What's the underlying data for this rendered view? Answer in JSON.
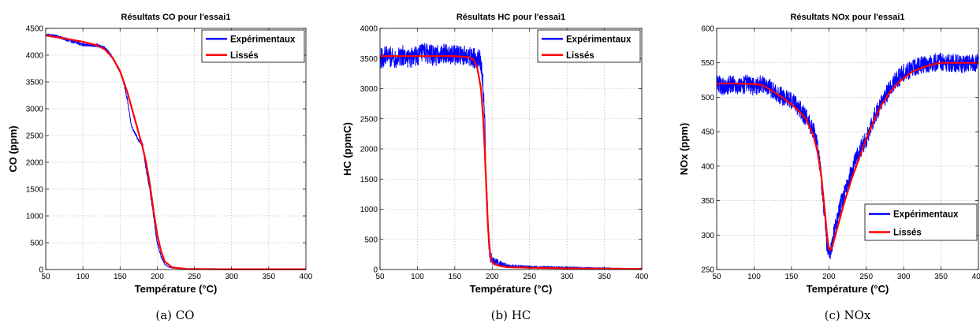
{
  "chart_data": [
    {
      "type": "line",
      "title": "Résultats CO pour l'essai1",
      "xlabel": "Température (°C)",
      "ylabel": "CO (ppm)",
      "caption": "(a) CO",
      "xlim": [
        50,
        400
      ],
      "ylim": [
        0,
        4500
      ],
      "xticks": [
        50,
        100,
        150,
        200,
        250,
        300,
        350,
        400
      ],
      "yticks": [
        0,
        500,
        1000,
        1500,
        2000,
        2500,
        3000,
        3500,
        4000,
        4500
      ],
      "grid": true,
      "legend_position": "top-right",
      "series": [
        {
          "name": "Expérimentaux",
          "color": "#0000ff",
          "x": [
            50,
            60,
            70,
            80,
            90,
            100,
            110,
            120,
            130,
            140,
            145,
            150,
            155,
            160,
            165,
            170,
            175,
            180,
            183,
            186,
            190,
            195,
            200,
            205,
            210,
            215,
            220,
            230,
            250,
            300,
            350,
            400
          ],
          "y": [
            4380,
            4360,
            4330,
            4280,
            4240,
            4200,
            4190,
            4180,
            4130,
            3950,
            3820,
            3700,
            3480,
            3150,
            2700,
            2550,
            2400,
            2350,
            2050,
            1800,
            1500,
            1000,
            500,
            250,
            100,
            50,
            30,
            15,
            10,
            5,
            5,
            5
          ],
          "noise": 30
        },
        {
          "name": "Lissés",
          "color": "#ff0000",
          "x": [
            50,
            80,
            100,
            120,
            130,
            140,
            150,
            160,
            170,
            180,
            185,
            190,
            195,
            200,
            205,
            210,
            220,
            240,
            300,
            400
          ],
          "y": [
            4370,
            4300,
            4250,
            4180,
            4100,
            3950,
            3700,
            3300,
            2800,
            2300,
            2000,
            1600,
            1100,
            650,
            350,
            150,
            40,
            10,
            5,
            5
          ]
        }
      ]
    },
    {
      "type": "line",
      "title": "Résultats HC pour l'essai1",
      "xlabel": "Température (°C)",
      "ylabel": "HC (ppmC)",
      "caption": "(b) HC",
      "xlim": [
        50,
        400
      ],
      "ylim": [
        0,
        4000
      ],
      "xticks": [
        50,
        100,
        150,
        200,
        250,
        300,
        350,
        400
      ],
      "yticks": [
        0,
        500,
        1000,
        1500,
        2000,
        2500,
        3000,
        3500,
        4000
      ],
      "grid": true,
      "legend_position": "top-right",
      "series": [
        {
          "name": "Expérimentaux",
          "color": "#0000ff",
          "x": [
            50,
            60,
            70,
            80,
            90,
            100,
            110,
            120,
            130,
            140,
            150,
            160,
            170,
            175,
            180,
            185,
            188,
            190,
            192,
            194,
            196,
            198,
            200,
            205,
            210,
            220,
            250,
            300,
            350,
            400
          ],
          "y": [
            3500,
            3550,
            3500,
            3550,
            3500,
            3550,
            3600,
            3550,
            3550,
            3600,
            3550,
            3550,
            3550,
            3500,
            3500,
            3450,
            3000,
            2500,
            1500,
            800,
            400,
            200,
            150,
            120,
            100,
            60,
            40,
            30,
            20,
            10
          ],
          "noise": 170
        },
        {
          "name": "Lissés",
          "color": "#ff0000",
          "x": [
            50,
            100,
            150,
            170,
            175,
            180,
            185,
            188,
            190,
            192,
            194,
            196,
            198,
            200,
            205,
            210,
            220,
            250,
            300,
            400
          ],
          "y": [
            3540,
            3540,
            3540,
            3520,
            3480,
            3350,
            3000,
            2500,
            2000,
            1400,
            800,
            400,
            200,
            120,
            80,
            60,
            40,
            30,
            20,
            10
          ]
        }
      ]
    },
    {
      "type": "line",
      "title": "Résultats NOx pour l'essai1",
      "xlabel": "Température (°C)",
      "ylabel": "NOx (ppm)",
      "caption": "(c) NOx",
      "xlim": [
        50,
        400
      ],
      "ylim": [
        250,
        600
      ],
      "xticks": [
        50,
        100,
        150,
        200,
        250,
        300,
        350,
        400
      ],
      "yticks": [
        250,
        300,
        350,
        400,
        450,
        500,
        550,
        600
      ],
      "grid": true,
      "legend_position": "bottom-right",
      "series": [
        {
          "name": "Expérimentaux",
          "color": "#0000ff",
          "x": [
            50,
            60,
            70,
            80,
            90,
            100,
            110,
            120,
            130,
            140,
            150,
            160,
            170,
            175,
            180,
            185,
            190,
            195,
            198,
            200,
            202,
            205,
            210,
            220,
            230,
            240,
            250,
            260,
            270,
            280,
            290,
            300,
            310,
            320,
            330,
            340,
            350,
            360,
            370,
            380,
            390,
            400
          ],
          "y": [
            520,
            515,
            520,
            515,
            520,
            515,
            520,
            515,
            505,
            500,
            495,
            485,
            470,
            460,
            450,
            430,
            380,
            320,
            280,
            270,
            275,
            290,
            320,
            360,
            390,
            420,
            440,
            470,
            490,
            510,
            525,
            535,
            540,
            545,
            548,
            550,
            552,
            550,
            550,
            548,
            550,
            550
          ],
          "noise": 13
        },
        {
          "name": "Lissés",
          "color": "#ff0000",
          "x": [
            50,
            80,
            100,
            110,
            120,
            130,
            140,
            150,
            160,
            170,
            175,
            180,
            185,
            190,
            195,
            198,
            200,
            202,
            205,
            210,
            220,
            230,
            240,
            250,
            260,
            270,
            280,
            290,
            300,
            310,
            320,
            330,
            340,
            350,
            360,
            380,
            400
          ],
          "y": [
            520,
            520,
            519,
            518,
            512,
            505,
            498,
            490,
            480,
            468,
            455,
            442,
            420,
            385,
            330,
            295,
            280,
            278,
            285,
            305,
            345,
            380,
            410,
            440,
            465,
            488,
            505,
            518,
            528,
            536,
            541,
            545,
            548,
            550,
            550,
            550,
            550
          ]
        }
      ]
    }
  ]
}
